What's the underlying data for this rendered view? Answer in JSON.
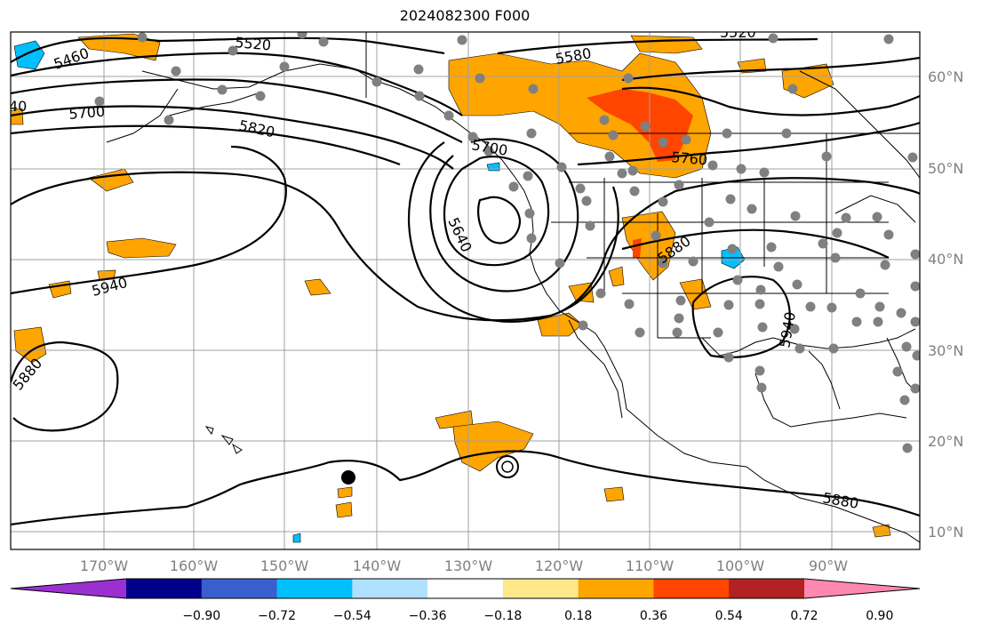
{
  "title": "2024082300 F000",
  "longitude_labels": [
    "170°W",
    "160°W",
    "150°W",
    "140°W",
    "130°W",
    "120°W",
    "110°W",
    "100°W",
    "90°W"
  ],
  "latitude_labels": [
    "60°N",
    "50°N",
    "40°N",
    "30°N",
    "20°N",
    "10°N"
  ],
  "contour_labels": [
    "5460",
    "5520",
    "5580",
    "5520",
    "40",
    "5700",
    "5820",
    "5700",
    "5760",
    "5640",
    "5880",
    "5940",
    "5880",
    "5940",
    "5880"
  ],
  "colorbar": {
    "tick_labels": [
      "−0.90",
      "−0.72",
      "−0.54",
      "−0.36",
      "−0.18",
      "0.18",
      "0.36",
      "0.54",
      "0.72",
      "0.90"
    ],
    "colors": [
      "#9b30d0",
      "#00008b",
      "#3a5fcd",
      "#00bfff",
      "#b0e0ff",
      "#ffffff",
      "#ffe88a",
      "#ffa500",
      "#ff4500",
      "#b22222",
      "#ff88b0"
    ]
  },
  "colors": {
    "contour": "#000000",
    "grid": "#a0a0a0",
    "coast": "#000000",
    "station": "#808080",
    "positive_field": "#ffa500",
    "strong_positive_field": "#ff4500",
    "negative_field": "#00bfff"
  }
}
